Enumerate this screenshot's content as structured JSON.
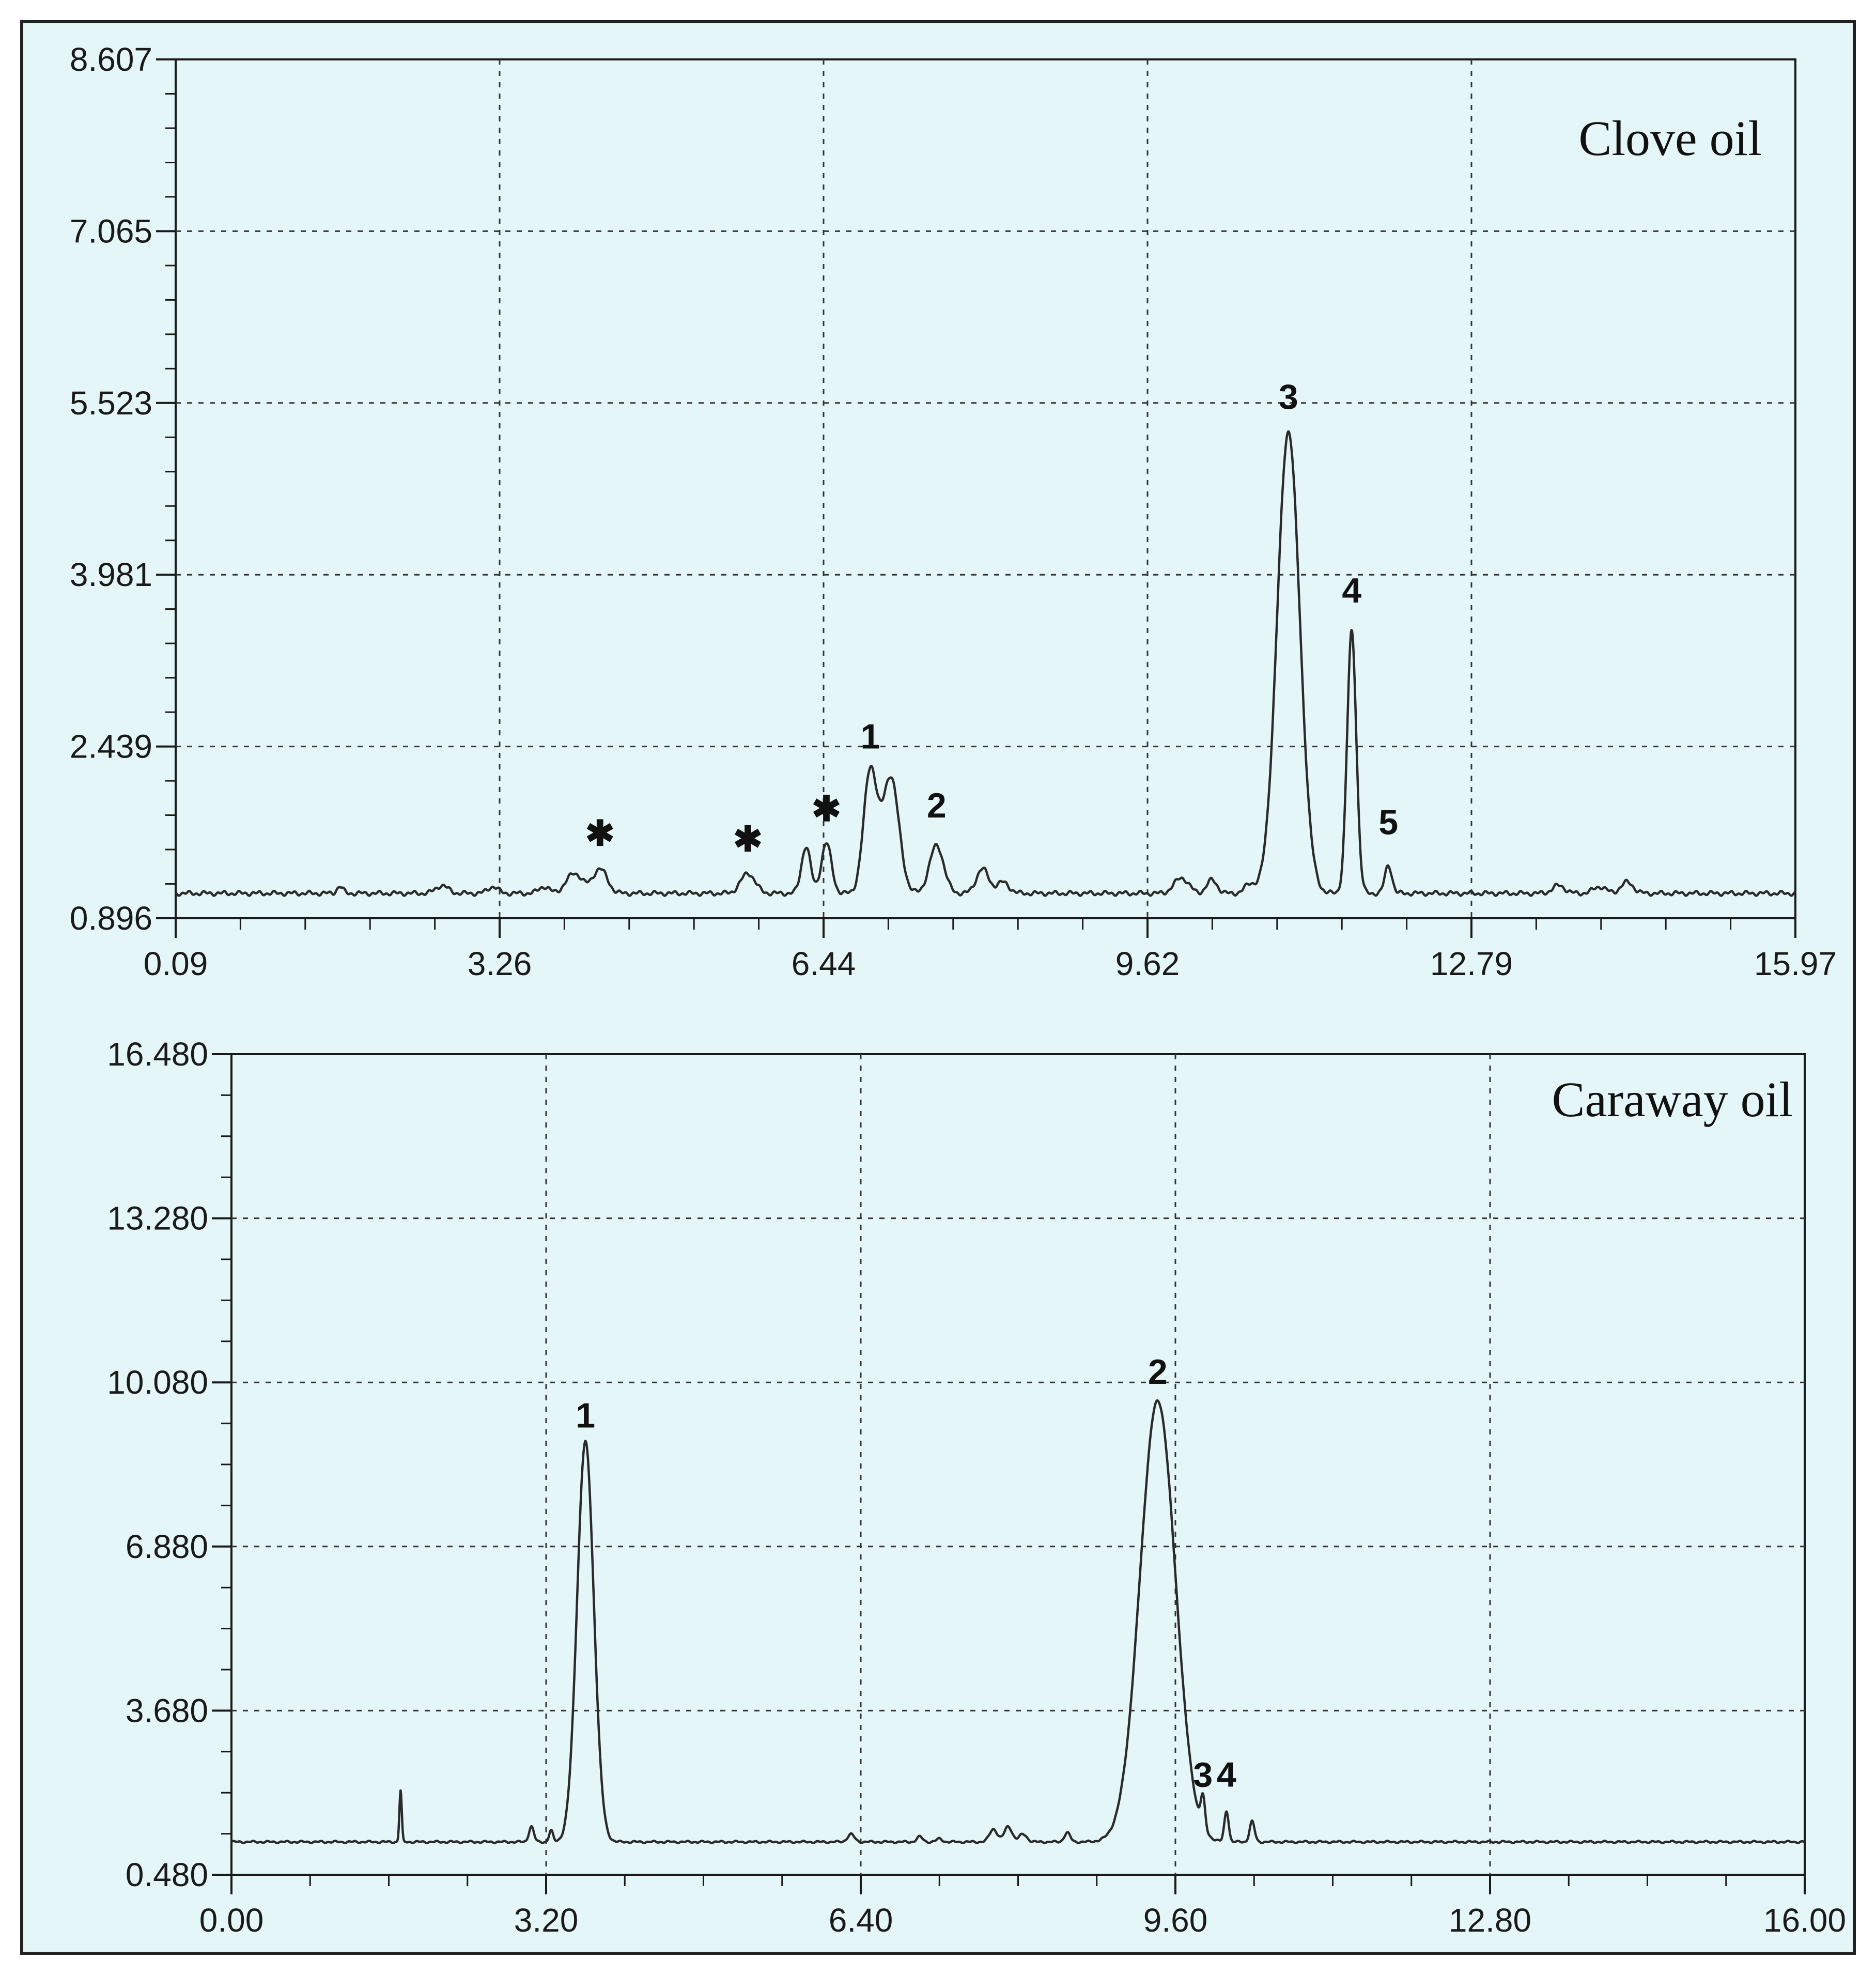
{
  "colors": {
    "panel_background": "#e4f6f7",
    "figure_border": "#222222",
    "trace": "#2a2a2a",
    "grid": "#333333"
  },
  "chart_data": [
    {
      "type": "line",
      "title": "Clove oil",
      "xlabel": "",
      "ylabel": "",
      "xlim": [
        0.09,
        15.97
      ],
      "ylim": [
        0.896,
        8.607
      ],
      "x_ticks": [
        "0.09",
        "3.26",
        "6.44",
        "9.62",
        "12.79",
        "15.97"
      ],
      "y_ticks": [
        "0.896",
        "2.439",
        "3.981",
        "5.523",
        "7.065",
        "8.607"
      ],
      "grid": true,
      "baseline": 1.12,
      "series": [
        {
          "peaks": [
            {
              "x": 1.7,
              "h": 0.06,
              "w": 0.03
            },
            {
              "x": 2.7,
              "h": 0.07,
              "w": 0.06
            },
            {
              "x": 3.2,
              "h": 0.06,
              "w": 0.05
            },
            {
              "x": 3.7,
              "h": 0.06,
              "w": 0.05
            },
            {
              "x": 4.0,
              "h": 0.18,
              "w": 0.08
            },
            {
              "x": 4.25,
              "h": 0.22,
              "w": 0.07
            },
            {
              "x": 5.7,
              "h": 0.18,
              "w": 0.07
            },
            {
              "x": 6.27,
              "h": 0.42,
              "w": 0.045
            },
            {
              "x": 6.47,
              "h": 0.45,
              "w": 0.05
            },
            {
              "x": 6.9,
              "h": 1.1,
              "w": 0.065
            },
            {
              "x": 7.1,
              "h": 1.05,
              "w": 0.08
            },
            {
              "x": 7.55,
              "h": 0.43,
              "w": 0.07
            },
            {
              "x": 8.0,
              "h": 0.22,
              "w": 0.06
            },
            {
              "x": 8.2,
              "h": 0.1,
              "w": 0.06
            },
            {
              "x": 9.95,
              "h": 0.14,
              "w": 0.07
            },
            {
              "x": 10.25,
              "h": 0.12,
              "w": 0.05
            },
            {
              "x": 10.62,
              "h": 0.08,
              "w": 0.05
            },
            {
              "x": 11.0,
              "h": 4.15,
              "w": 0.11
            },
            {
              "x": 11.62,
              "h": 2.35,
              "w": 0.045
            },
            {
              "x": 11.98,
              "h": 0.25,
              "w": 0.035
            },
            {
              "x": 13.65,
              "h": 0.07,
              "w": 0.06
            },
            {
              "x": 14.05,
              "h": 0.06,
              "w": 0.06
            },
            {
              "x": 14.32,
              "h": 0.1,
              "w": 0.06
            }
          ]
        }
      ],
      "annotations": [
        {
          "text": "✱",
          "x": 4.25,
          "y": 1.55
        },
        {
          "text": "✱",
          "x": 5.7,
          "y": 1.5
        },
        {
          "text": "✱",
          "x": 6.47,
          "y": 1.77
        },
        {
          "text": "1",
          "x": 6.9,
          "y": 2.42
        },
        {
          "text": "2",
          "x": 7.55,
          "y": 1.8
        },
        {
          "text": "3",
          "x": 11.0,
          "y": 5.47
        },
        {
          "text": "4",
          "x": 11.62,
          "y": 3.73
        },
        {
          "text": "5",
          "x": 11.98,
          "y": 1.65
        }
      ]
    },
    {
      "type": "line",
      "title": "Caraway oil",
      "xlabel": "",
      "ylabel": "",
      "xlim": [
        0.0,
        16.0
      ],
      "ylim": [
        0.48,
        16.48
      ],
      "x_ticks": [
        "0.00",
        "3.20",
        "6.40",
        "9.60",
        "12.80",
        "16.00"
      ],
      "y_ticks": [
        "0.480",
        "3.680",
        "6.880",
        "10.080",
        "13.280",
        "16.480"
      ],
      "grid": true,
      "baseline": 1.12,
      "series": [
        {
          "peaks": [
            {
              "x": 1.72,
              "h": 1.0,
              "w": 0.012
            },
            {
              "x": 3.05,
              "h": 0.3,
              "w": 0.025
            },
            {
              "x": 3.25,
              "h": 0.22,
              "w": 0.02
            },
            {
              "x": 3.6,
              "h": 7.8,
              "w": 0.085
            },
            {
              "x": 6.3,
              "h": 0.15,
              "w": 0.035
            },
            {
              "x": 7.0,
              "h": 0.1,
              "w": 0.03
            },
            {
              "x": 7.2,
              "h": 0.06,
              "w": 0.03
            },
            {
              "x": 7.75,
              "h": 0.25,
              "w": 0.04
            },
            {
              "x": 7.9,
              "h": 0.3,
              "w": 0.04
            },
            {
              "x": 8.05,
              "h": 0.15,
              "w": 0.04
            },
            {
              "x": 8.5,
              "h": 0.18,
              "w": 0.03
            },
            {
              "x": 9.42,
              "h": 8.6,
              "w": 0.18
            },
            {
              "x": 9.88,
              "h": 0.6,
              "w": 0.022
            },
            {
              "x": 10.12,
              "h": 0.6,
              "w": 0.022
            },
            {
              "x": 10.38,
              "h": 0.4,
              "w": 0.025
            }
          ]
        }
      ],
      "annotations": [
        {
          "text": "1",
          "x": 3.6,
          "y": 9.2
        },
        {
          "text": "2",
          "x": 9.42,
          "y": 10.05
        },
        {
          "text": "3",
          "x": 9.88,
          "y": 2.2
        },
        {
          "text": "4",
          "x": 10.12,
          "y": 2.2
        }
      ]
    }
  ]
}
